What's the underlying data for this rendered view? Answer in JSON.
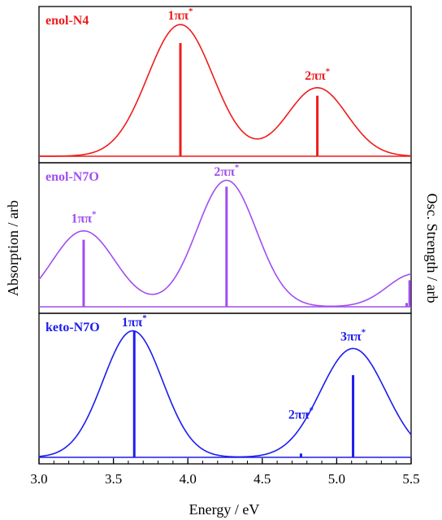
{
  "chart_data": {
    "type": "line",
    "xlabel": "Energy / eV",
    "ylabel_left": "Absorption / arb",
    "ylabel_right": "Osc. Strength / arb",
    "xlim": [
      3.0,
      5.5
    ],
    "xticks": [
      3.0,
      3.5,
      4.0,
      4.5,
      5.0,
      5.5
    ],
    "xtick_labels": [
      "3.0",
      "3.5",
      "4.0",
      "4.5",
      "5.0",
      "5.5"
    ],
    "grid": false,
    "panels": [
      {
        "name": "enol-N4",
        "color": "#ee1c1c",
        "ylim": [
          0,
          1.1
        ],
        "peaks": [
          {
            "center": 3.95,
            "height": 1.0,
            "width": 0.22
          },
          {
            "center": 4.87,
            "height": 0.52,
            "width": 0.2
          }
        ],
        "sticks": [
          {
            "x": 3.95,
            "f": 0.86,
            "label": "1ππ",
            "sup": "*"
          },
          {
            "x": 4.87,
            "f": 0.46,
            "label": "2ππ",
            "sup": "*"
          }
        ]
      },
      {
        "name": "enol-N7O",
        "color": "#a14ef0",
        "ylim": [
          0,
          1.1
        ],
        "peaks": [
          {
            "center": 3.3,
            "height": 0.6,
            "width": 0.21
          },
          {
            "center": 4.26,
            "height": 1.0,
            "width": 0.2
          },
          {
            "center": 5.52,
            "height": 0.26,
            "width": 0.18
          }
        ],
        "sticks": [
          {
            "x": 3.3,
            "f": 0.53,
            "label": "1ππ",
            "sup": "*"
          },
          {
            "x": 4.26,
            "f": 0.95,
            "label": "2ππ",
            "sup": "*"
          },
          {
            "x": 5.47,
            "f": 0.03,
            "label": "",
            "sup": ""
          },
          {
            "x": 5.49,
            "f": 0.21,
            "label": "",
            "sup": ""
          }
        ]
      },
      {
        "name": "keto-N7O",
        "color": "#1c1cee",
        "ylim": [
          0,
          1.1
        ],
        "peaks": [
          {
            "center": 3.63,
            "height": 1.0,
            "width": 0.2
          },
          {
            "center": 5.11,
            "height": 0.86,
            "width": 0.22
          }
        ],
        "sticks": [
          {
            "x": 3.64,
            "f": 1.0,
            "label": "1ππ",
            "sup": "*"
          },
          {
            "x": 4.76,
            "f": 0.03,
            "label": "2ππ",
            "sup": "*"
          },
          {
            "x": 5.11,
            "f": 0.65,
            "label": "3ππ",
            "sup": "*"
          }
        ]
      }
    ]
  }
}
